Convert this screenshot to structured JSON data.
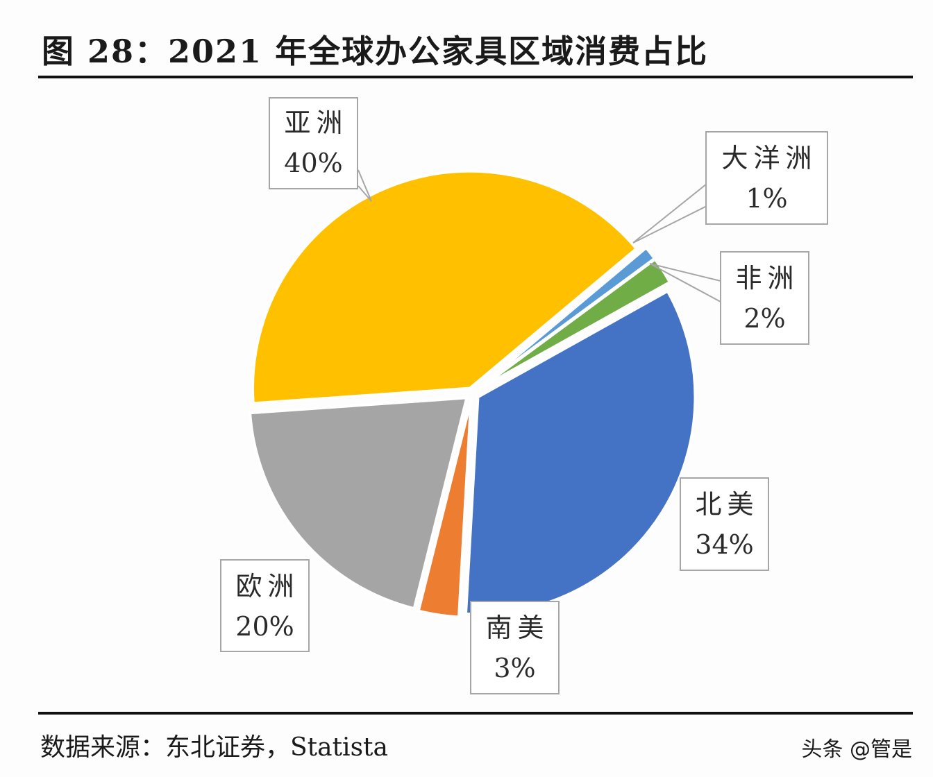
{
  "title": "图 28：2021 年全球办公家具区域消费占比",
  "source": "数据来源：东北证券，Statista",
  "watermark": "头条 @管是",
  "chart_data": {
    "type": "pie",
    "title": "2021 年全球办公家具区域消费占比",
    "categories": [
      "大洋洲",
      "非洲",
      "北美",
      "南美",
      "欧洲",
      "亚洲"
    ],
    "values": [
      1,
      2,
      34,
      3,
      20,
      40
    ],
    "unit": "%",
    "colors": [
      "#5b9bd5",
      "#70ad47",
      "#4472c4",
      "#ed7d31",
      "#a5a5a5",
      "#ffc000"
    ],
    "labels": [
      {
        "name": "大洋洲",
        "value": "1%"
      },
      {
        "name": "非洲",
        "value": "2%"
      },
      {
        "name": "北美",
        "value": "34%"
      },
      {
        "name": "南美",
        "value": "3%"
      },
      {
        "name": "欧洲",
        "value": "20%"
      },
      {
        "name": "亚洲",
        "value": "40%"
      }
    ],
    "exploded": true,
    "legend": "data callouts",
    "source": "东北证券，Statista"
  }
}
